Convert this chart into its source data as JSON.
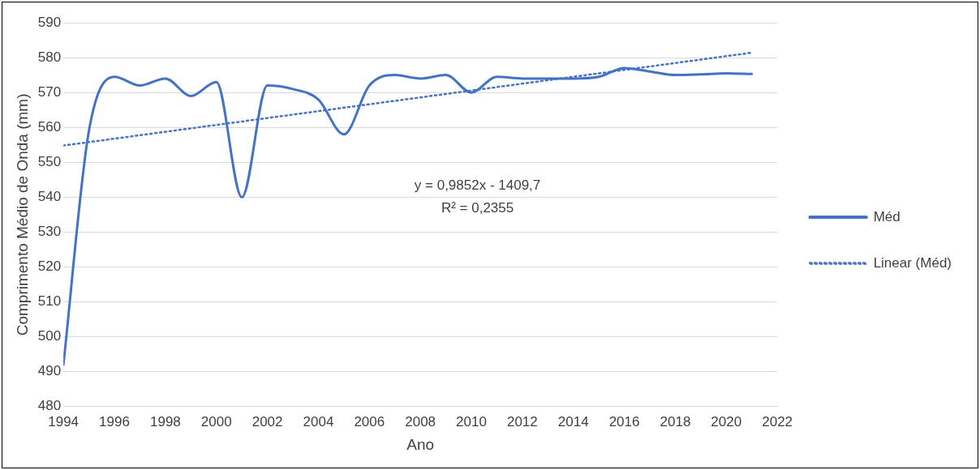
{
  "chart_data": {
    "type": "line",
    "xlabel": "Ano",
    "ylabel": "Comprimento Médio de Onda (mm)",
    "x": [
      1994,
      1995,
      1996,
      1997,
      1998,
      1999,
      2000,
      2001,
      2002,
      2003,
      2004,
      2005,
      2006,
      2007,
      2008,
      2009,
      2010,
      2011,
      2012,
      2013,
      2014,
      2015,
      2016,
      2017,
      2018,
      2019,
      2020,
      2021
    ],
    "series": [
      {
        "name": "Méd",
        "color": "#4472c4",
        "line_style": "solid",
        "values": [
          492,
          559,
          574.5,
          572,
          574,
          569,
          573,
          540,
          572,
          571,
          568,
          558,
          572,
          575,
          574,
          575,
          570,
          574.5,
          574,
          574,
          574,
          574.5,
          577,
          576,
          575,
          575.2,
          575.5,
          575.3
        ]
      },
      {
        "name": "Linear (Méd)",
        "color": "#4472c4",
        "line_style": "dotted",
        "x": [
          1994,
          2021
        ],
        "values": [
          554.8,
          581.4
        ]
      }
    ],
    "xlim": [
      1994,
      2022
    ],
    "xticks": [
      1994,
      1996,
      1998,
      2000,
      2002,
      2004,
      2006,
      2008,
      2010,
      2012,
      2014,
      2016,
      2018,
      2020,
      2022
    ],
    "ylim": [
      480,
      590
    ],
    "yticks": [
      480,
      490,
      500,
      510,
      520,
      530,
      540,
      550,
      560,
      570,
      580,
      590
    ],
    "grid": "y",
    "legend": "right",
    "marker": "none",
    "annotations": [
      "y = 0,9852x - 1409,7",
      "R² = 0,2355"
    ]
  }
}
